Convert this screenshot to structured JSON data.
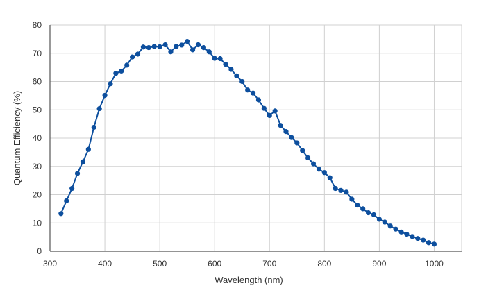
{
  "chart_data": {
    "type": "line",
    "title": "",
    "xlabel": "Wavelength (nm)",
    "ylabel": "Quantum Efficiency (%)",
    "xlim": [
      300,
      1050
    ],
    "ylim": [
      0,
      80
    ],
    "x_ticks": [
      "300",
      "400",
      "500",
      "600",
      "700",
      "800",
      "900",
      "1000"
    ],
    "y_ticks": [
      "0",
      "10",
      "20",
      "30",
      "40",
      "50",
      "60",
      "70",
      "80"
    ],
    "grid": true,
    "legend": "none",
    "series": [
      {
        "color": "#0d4f9e",
        "points": [
          [
            320,
            13.3
          ],
          [
            330,
            17.8
          ],
          [
            340,
            22.2
          ],
          [
            350,
            27.5
          ],
          [
            360,
            31.6
          ],
          [
            370,
            36.0
          ],
          [
            380,
            43.8
          ],
          [
            390,
            50.4
          ],
          [
            400,
            55.1
          ],
          [
            410,
            59.2
          ],
          [
            420,
            62.9
          ],
          [
            430,
            63.7
          ],
          [
            440,
            65.8
          ],
          [
            450,
            68.7
          ],
          [
            460,
            69.7
          ],
          [
            470,
            72.2
          ],
          [
            480,
            72.0
          ],
          [
            490,
            72.4
          ],
          [
            500,
            72.3
          ],
          [
            510,
            73.0
          ],
          [
            520,
            70.5
          ],
          [
            530,
            72.4
          ],
          [
            540,
            72.9
          ],
          [
            550,
            74.2
          ],
          [
            560,
            71.2
          ],
          [
            570,
            73.0
          ],
          [
            580,
            72.0
          ],
          [
            590,
            70.5
          ],
          [
            600,
            68.2
          ],
          [
            610,
            68.1
          ],
          [
            620,
            66.1
          ],
          [
            630,
            64.3
          ],
          [
            640,
            62.0
          ],
          [
            650,
            60.0
          ],
          [
            660,
            57.0
          ],
          [
            670,
            55.9
          ],
          [
            680,
            53.5
          ],
          [
            690,
            50.5
          ],
          [
            700,
            48.0
          ],
          [
            710,
            49.6
          ],
          [
            720,
            44.5
          ],
          [
            730,
            42.3
          ],
          [
            740,
            40.2
          ],
          [
            750,
            38.3
          ],
          [
            760,
            35.6
          ],
          [
            770,
            33.0
          ],
          [
            780,
            30.9
          ],
          [
            790,
            29.0
          ],
          [
            800,
            27.8
          ],
          [
            810,
            26.0
          ],
          [
            820,
            22.2
          ],
          [
            830,
            21.5
          ],
          [
            840,
            20.9
          ],
          [
            850,
            18.4
          ],
          [
            860,
            16.3
          ],
          [
            870,
            15.0
          ],
          [
            880,
            13.6
          ],
          [
            890,
            12.9
          ],
          [
            900,
            11.3
          ],
          [
            910,
            10.3
          ],
          [
            920,
            8.9
          ],
          [
            930,
            7.8
          ],
          [
            940,
            6.8
          ],
          [
            950,
            6.0
          ],
          [
            960,
            5.2
          ],
          [
            970,
            4.5
          ],
          [
            980,
            3.9
          ],
          [
            990,
            3.0
          ],
          [
            1000,
            2.5
          ]
        ]
      }
    ]
  }
}
